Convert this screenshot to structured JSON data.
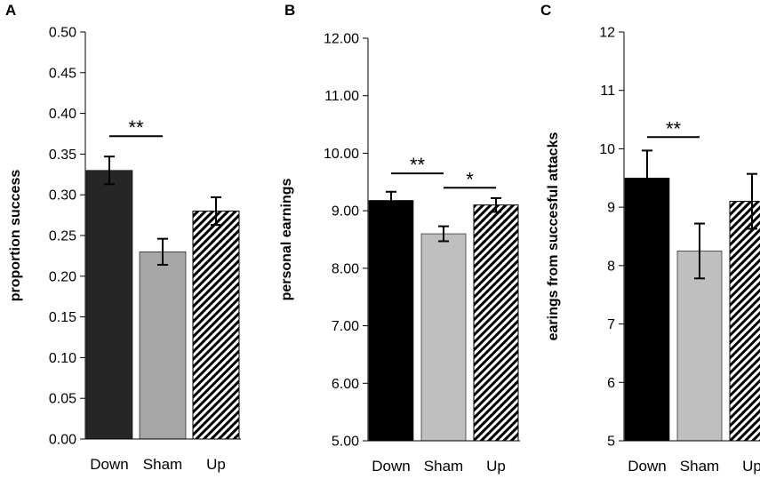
{
  "chart_data": [
    {
      "type": "bar",
      "panel": "A",
      "categories": [
        "Down",
        "Sham",
        "Up"
      ],
      "values": [
        0.33,
        0.23,
        0.28
      ],
      "errors": [
        0.017,
        0.016,
        0.017
      ],
      "fills": [
        "solid-dark",
        "solid-mid",
        "hatched"
      ],
      "colors": {
        "Down": "#262626",
        "Sham": "#a6a6a6",
        "Up": "hatch"
      },
      "ylabel": "proportion success",
      "xlabel": "",
      "ylim": [
        0,
        0.5
      ],
      "yticks": [
        "0.00",
        "0.05",
        "0.10",
        "0.15",
        "0.20",
        "0.25",
        "0.30",
        "0.35",
        "0.40",
        "0.45",
        "0.50"
      ],
      "significance": [
        {
          "from": 0,
          "to": 1,
          "label": "**",
          "level": 0.372
        }
      ]
    },
    {
      "type": "bar",
      "panel": "B",
      "categories": [
        "Down",
        "Sham",
        "Up"
      ],
      "values": [
        9.18,
        8.6,
        9.1
      ],
      "errors": [
        0.15,
        0.13,
        0.12
      ],
      "fills": [
        "solid-dark",
        "solid-light",
        "hatched"
      ],
      "colors": {
        "Down": "#000000",
        "Sham": "#bfbfbf",
        "Up": "hatch"
      },
      "ylabel": "personal earnings",
      "xlabel": "",
      "ylim": [
        5,
        12
      ],
      "yticks": [
        "5.00",
        "6.00",
        "7.00",
        "8.00",
        "9.00",
        "10.00",
        "11.00",
        "12.00"
      ],
      "significance": [
        {
          "from": 0,
          "to": 1,
          "label": "**",
          "level": 9.65
        },
        {
          "from": 1,
          "to": 2,
          "label": "*",
          "level": 9.4
        }
      ]
    },
    {
      "type": "bar",
      "panel": "C",
      "categories": [
        "Down",
        "Sham",
        "Up"
      ],
      "values": [
        9.5,
        8.25,
        9.1
      ],
      "errors": [
        0.47,
        0.47,
        0.47
      ],
      "fills": [
        "solid-dark",
        "solid-light",
        "hatched"
      ],
      "colors": {
        "Down": "#000000",
        "Sham": "#bfbfbf",
        "Up": "hatch"
      },
      "ylabel": "earings from succesful attacks",
      "xlabel": "",
      "ylim": [
        5,
        12
      ],
      "yticks": [
        "5",
        "6",
        "7",
        "8",
        "9",
        "10",
        "11",
        "12"
      ],
      "significance": [
        {
          "from": 0,
          "to": 1,
          "label": "**",
          "level": 10.2
        }
      ]
    }
  ]
}
